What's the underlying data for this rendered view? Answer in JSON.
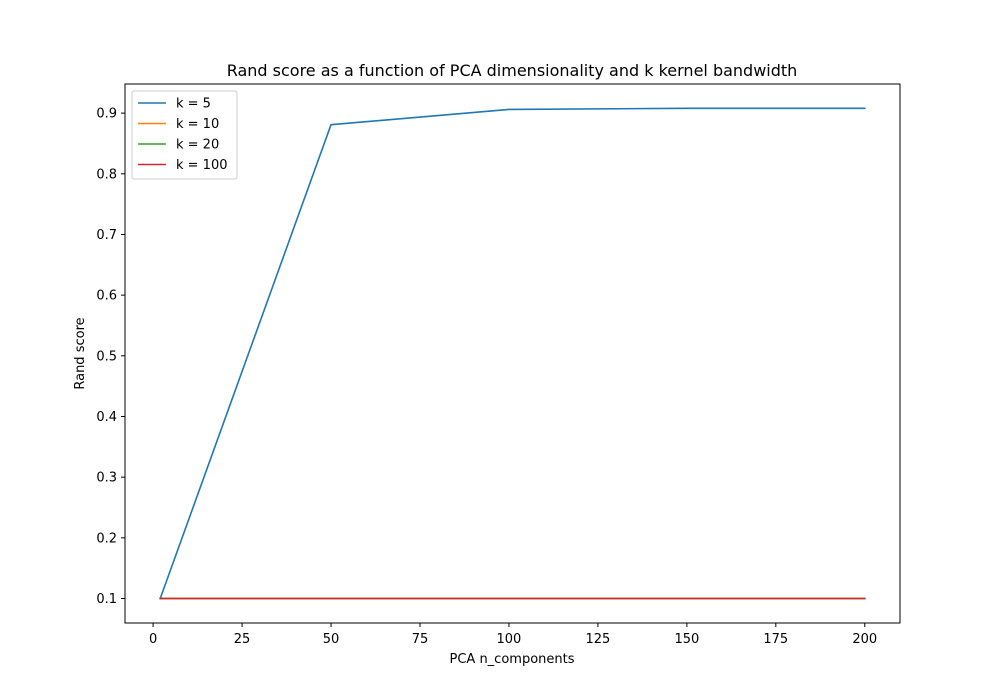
{
  "chart_data": {
    "type": "line",
    "title": "Rand score as a function of PCA dimensionality and k kernel bandwidth",
    "xlabel": "PCA n_components",
    "ylabel": "Rand score",
    "x": [
      2,
      50,
      100,
      150,
      200
    ],
    "series": [
      {
        "name": "k = 5",
        "color": "#1f77b4",
        "values": [
          0.1,
          0.881,
          0.906,
          0.908,
          0.908
        ]
      },
      {
        "name": "k = 10",
        "color": "#ff7f0e",
        "values": [
          0.1,
          0.1,
          0.1,
          0.1,
          0.1
        ]
      },
      {
        "name": "k = 20",
        "color": "#2ca02c",
        "values": [
          0.1,
          0.1,
          0.1,
          0.1,
          0.1
        ]
      },
      {
        "name": "k = 100",
        "color": "#d62728",
        "values": [
          0.1,
          0.1,
          0.1,
          0.1,
          0.1
        ]
      }
    ],
    "xlim": [
      -7.9,
      209.9
    ],
    "ylim": [
      0.0596,
      0.948
    ],
    "xticks": [
      0,
      25,
      50,
      75,
      100,
      125,
      150,
      175,
      200
    ],
    "yticks": [
      0.1,
      0.2,
      0.3,
      0.4,
      0.5,
      0.6,
      0.7,
      0.8,
      0.9
    ],
    "ytick_labels": [
      "0.1",
      "0.2",
      "0.3",
      "0.4",
      "0.5",
      "0.6",
      "0.7",
      "0.8",
      "0.9"
    ],
    "grid": false,
    "legend_position": "top-left"
  }
}
